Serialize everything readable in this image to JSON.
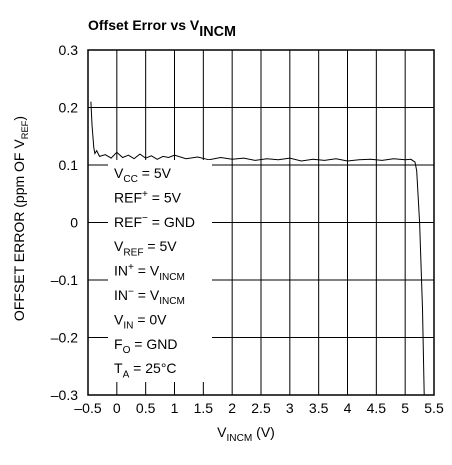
{
  "chart_data": {
    "type": "line",
    "title": [
      {
        "text": "Offset Error vs V"
      },
      {
        "text": "INCM",
        "shift": "sub"
      }
    ],
    "x_label": [
      {
        "text": "V"
      },
      {
        "text": "INCM",
        "shift": "sub"
      },
      {
        "text": " (V)"
      }
    ],
    "y_label": [
      {
        "text": "OFFSET ERROR (ppm OF V"
      },
      {
        "text": "REF",
        "shift": "sub"
      },
      {
        "text": ")"
      }
    ],
    "annotations": [
      [
        {
          "text": "V"
        },
        {
          "text": "CC",
          "shift": "sub"
        },
        {
          "text": " = 5V"
        }
      ],
      [
        {
          "text": "REF"
        },
        {
          "text": "+",
          "shift": "super"
        },
        {
          "text": " = 5V"
        }
      ],
      [
        {
          "text": "REF"
        },
        {
          "text": "−",
          "shift": "super"
        },
        {
          "text": " = GND"
        }
      ],
      [
        {
          "text": "V"
        },
        {
          "text": "REF",
          "shift": "sub"
        },
        {
          "text": " = 5V"
        }
      ],
      [
        {
          "text": "IN"
        },
        {
          "text": "+",
          "shift": "super"
        },
        {
          "text": " = V"
        },
        {
          "text": "INCM",
          "shift": "sub"
        }
      ],
      [
        {
          "text": "IN"
        },
        {
          "text": "−",
          "shift": "super"
        },
        {
          "text": " = V"
        },
        {
          "text": "INCM",
          "shift": "sub"
        }
      ],
      [
        {
          "text": "V"
        },
        {
          "text": "IN",
          "shift": "sub"
        },
        {
          "text": " = 0V"
        }
      ],
      [
        {
          "text": "F"
        },
        {
          "text": "O",
          "shift": "sub"
        },
        {
          "text": " = GND"
        }
      ],
      [
        {
          "text": "T"
        },
        {
          "text": "A",
          "shift": "sub"
        },
        {
          "text": " = 25°C"
        }
      ]
    ],
    "x": [
      -0.45,
      -0.43,
      -0.4,
      -0.38,
      -0.35,
      -0.3,
      -0.2,
      -0.1,
      0,
      0.1,
      0.2,
      0.3,
      0.4,
      0.5,
      0.6,
      0.7,
      0.8,
      0.9,
      1.0,
      1.2,
      1.4,
      1.6,
      1.8,
      2.0,
      2.2,
      2.4,
      2.6,
      2.8,
      3.0,
      3.2,
      3.4,
      3.6,
      3.8,
      4.0,
      4.2,
      4.4,
      4.6,
      4.8,
      5.0,
      5.1,
      5.17,
      5.2,
      5.25,
      5.3,
      5.33
    ],
    "series": [
      {
        "color": "#000000",
        "values": [
          0.21,
          0.17,
          0.13,
          0.12,
          0.125,
          0.115,
          0.118,
          0.112,
          0.122,
          0.113,
          0.117,
          0.111,
          0.119,
          0.112,
          0.116,
          0.11,
          0.115,
          0.113,
          0.117,
          0.111,
          0.114,
          0.109,
          0.113,
          0.11,
          0.112,
          0.108,
          0.111,
          0.109,
          0.112,
          0.107,
          0.11,
          0.108,
          0.111,
          0.107,
          0.109,
          0.11,
          0.108,
          0.111,
          0.109,
          0.11,
          0.105,
          0.09,
          0.0,
          -0.15,
          -0.3
        ]
      }
    ],
    "xlim": [
      -0.5,
      5.5
    ],
    "xticks": [
      {
        "value": -0.5,
        "label": "–0.5"
      },
      0,
      0.5,
      1,
      1.5,
      2,
      2.5,
      3,
      3.5,
      4,
      4.5,
      5,
      5.5
    ],
    "ylim": [
      -0.3,
      0.3
    ],
    "yticks": [
      {
        "value": -0.3,
        "label": "–0.3"
      },
      {
        "value": -0.2,
        "label": "–0.2"
      },
      {
        "value": -0.1,
        "label": "–0.1"
      },
      0,
      0.1,
      0.2,
      0.3
    ],
    "grid": true
  }
}
